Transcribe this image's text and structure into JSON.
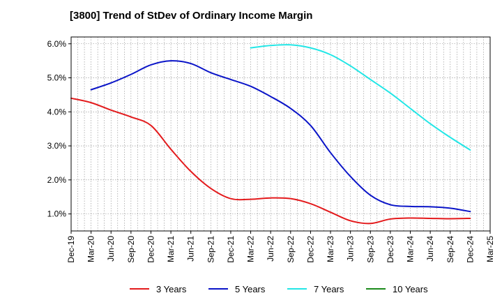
{
  "chart_data": {
    "type": "line",
    "title": "[3800]  Trend of StDev of Ordinary Income Margin",
    "xlabel": "",
    "ylabel": "",
    "x_ticks": [
      "Dec-19",
      "Mar-20",
      "Jun-20",
      "Sep-20",
      "Dec-20",
      "Mar-21",
      "Jun-21",
      "Sep-21",
      "Dec-21",
      "Mar-22",
      "Jun-22",
      "Sep-22",
      "Dec-22",
      "Mar-23",
      "Jun-23",
      "Sep-23",
      "Dec-23",
      "Mar-24",
      "Jun-24",
      "Sep-24",
      "Dec-24",
      "Mar-25"
    ],
    "y_ticks": [
      "1.0%",
      "2.0%",
      "3.0%",
      "4.0%",
      "5.0%",
      "6.0%"
    ],
    "ylim": [
      0.5,
      6.2
    ],
    "grid": true,
    "legend_position": "bottom",
    "series": [
      {
        "name": "3 Years",
        "color": "#e31a1c",
        "points": [
          [
            "Dec-19",
            4.4
          ],
          [
            "Mar-20",
            4.27
          ],
          [
            "Jun-20",
            4.05
          ],
          [
            "Sep-20",
            3.85
          ],
          [
            "Dec-20",
            3.6
          ],
          [
            "Mar-21",
            2.9
          ],
          [
            "Jun-21",
            2.25
          ],
          [
            "Sep-21",
            1.75
          ],
          [
            "Dec-21",
            1.45
          ],
          [
            "Mar-22",
            1.43
          ],
          [
            "Jun-22",
            1.47
          ],
          [
            "Sep-22",
            1.45
          ],
          [
            "Dec-22",
            1.3
          ],
          [
            "Mar-23",
            1.05
          ],
          [
            "Jun-23",
            0.8
          ],
          [
            "Sep-23",
            0.72
          ],
          [
            "Dec-23",
            0.85
          ],
          [
            "Mar-24",
            0.88
          ],
          [
            "Jun-24",
            0.87
          ],
          [
            "Sep-24",
            0.86
          ],
          [
            "Dec-24",
            0.87
          ]
        ]
      },
      {
        "name": "5 Years",
        "color": "#0a14c8",
        "points": [
          [
            "Mar-20",
            4.65
          ],
          [
            "Jun-20",
            4.85
          ],
          [
            "Sep-20",
            5.1
          ],
          [
            "Dec-20",
            5.38
          ],
          [
            "Mar-21",
            5.5
          ],
          [
            "Jun-21",
            5.42
          ],
          [
            "Sep-21",
            5.15
          ],
          [
            "Dec-21",
            4.95
          ],
          [
            "Mar-22",
            4.75
          ],
          [
            "Jun-22",
            4.45
          ],
          [
            "Sep-22",
            4.1
          ],
          [
            "Dec-22",
            3.6
          ],
          [
            "Mar-23",
            2.8
          ],
          [
            "Jun-23",
            2.1
          ],
          [
            "Sep-23",
            1.55
          ],
          [
            "Dec-23",
            1.27
          ],
          [
            "Mar-24",
            1.22
          ],
          [
            "Jun-24",
            1.21
          ],
          [
            "Sep-24",
            1.17
          ],
          [
            "Dec-24",
            1.07
          ]
        ]
      },
      {
        "name": "7 Years",
        "color": "#22e6e6",
        "points": [
          [
            "Mar-22",
            5.88
          ],
          [
            "Jun-22",
            5.95
          ],
          [
            "Sep-22",
            5.97
          ],
          [
            "Dec-22",
            5.88
          ],
          [
            "Mar-23",
            5.68
          ],
          [
            "Jun-23",
            5.35
          ],
          [
            "Sep-23",
            4.95
          ],
          [
            "Dec-23",
            4.55
          ],
          [
            "Mar-24",
            4.1
          ],
          [
            "Jun-24",
            3.65
          ],
          [
            "Sep-24",
            3.25
          ],
          [
            "Dec-24",
            2.88
          ]
        ]
      },
      {
        "name": "10 Years",
        "color": "#1a8a1a",
        "points": []
      }
    ]
  }
}
